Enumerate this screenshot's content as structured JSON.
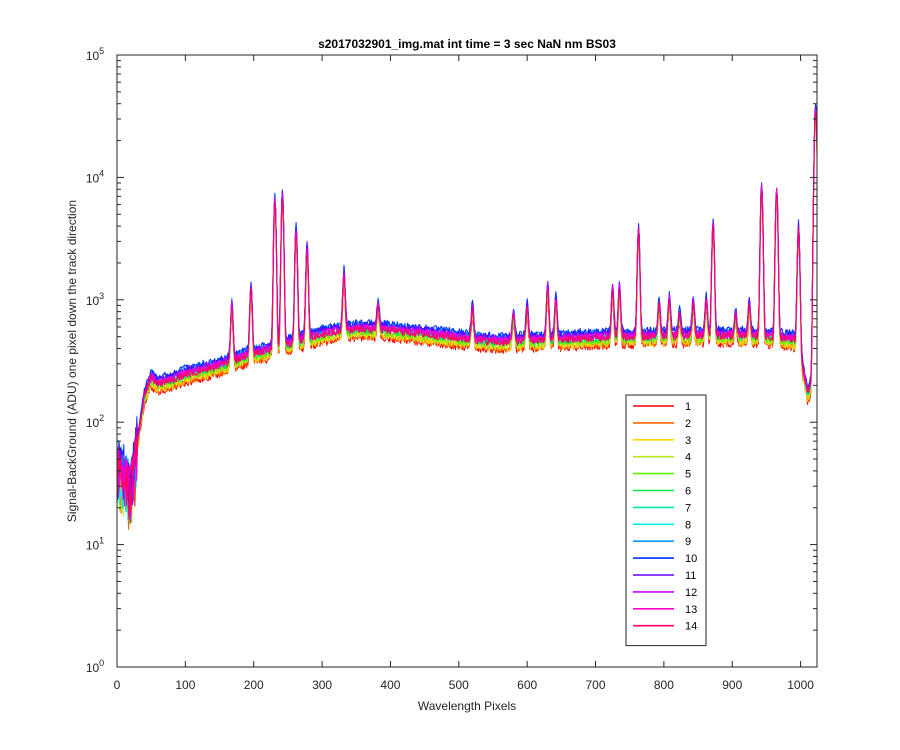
{
  "chart_data": {
    "type": "line",
    "title": "s2017032901_img.mat int time = 3 sec  NaN nm BS03",
    "xlabel": "Wavelength Pixels",
    "ylabel": "Signal-BackGround (ADU) one pixel down the track direction",
    "xlim": [
      0,
      1024
    ],
    "ylim": [
      1,
      100000
    ],
    "yscale": "log",
    "x_ticks": [
      "0",
      "100",
      "200",
      "300",
      "400",
      "500",
      "600",
      "700",
      "800",
      "900",
      "1000"
    ],
    "x_tick_values": [
      0,
      100,
      200,
      300,
      400,
      500,
      600,
      700,
      800,
      900,
      1000
    ],
    "y_tick_base": "10",
    "y_tick_exponents": [
      "0",
      "1",
      "2",
      "3",
      "4",
      "5"
    ],
    "y_tick_values": [
      1,
      10,
      100,
      1000,
      10000,
      100000
    ],
    "legend_position": "lower-right",
    "baseline_profile": {
      "x": [
        0,
        10,
        20,
        30,
        40,
        50,
        60,
        80,
        100,
        130,
        160,
        180,
        200,
        220,
        250,
        280,
        300,
        330,
        360,
        400,
        440,
        480,
        520,
        560,
        600,
        640,
        680,
        720,
        760,
        800,
        840,
        880,
        920,
        960,
        990,
        1000,
        1010,
        1024
      ],
      "y": [
        45,
        38,
        30,
        70,
        160,
        230,
        205,
        220,
        245,
        270,
        300,
        330,
        360,
        380,
        430,
        480,
        520,
        560,
        575,
        560,
        530,
        500,
        470,
        450,
        460,
        470,
        480,
        490,
        495,
        500,
        505,
        510,
        505,
        495,
        470,
        350,
        170,
        260
      ]
    },
    "peaks": [
      {
        "x": 168,
        "y": 900
      },
      {
        "x": 196,
        "y": 1200
      },
      {
        "x": 231,
        "y": 6200
      },
      {
        "x": 242,
        "y": 7000
      },
      {
        "x": 262,
        "y": 3600
      },
      {
        "x": 278,
        "y": 2600
      },
      {
        "x": 332,
        "y": 1600
      },
      {
        "x": 382,
        "y": 900
      },
      {
        "x": 520,
        "y": 850
      },
      {
        "x": 580,
        "y": 750
      },
      {
        "x": 600,
        "y": 850
      },
      {
        "x": 630,
        "y": 1250
      },
      {
        "x": 642,
        "y": 1000
      },
      {
        "x": 725,
        "y": 1200
      },
      {
        "x": 735,
        "y": 1250
      },
      {
        "x": 763,
        "y": 3600
      },
      {
        "x": 793,
        "y": 900
      },
      {
        "x": 808,
        "y": 1000
      },
      {
        "x": 823,
        "y": 750
      },
      {
        "x": 843,
        "y": 950
      },
      {
        "x": 862,
        "y": 1000
      },
      {
        "x": 872,
        "y": 4000
      },
      {
        "x": 905,
        "y": 750
      },
      {
        "x": 925,
        "y": 900
      },
      {
        "x": 943,
        "y": 8000
      },
      {
        "x": 965,
        "y": 7500
      },
      {
        "x": 997,
        "y": 3800
      },
      {
        "x": 1022,
        "y": 35000
      }
    ],
    "series": [
      {
        "name": "1",
        "color": "#ff0000",
        "scale": 0.86
      },
      {
        "name": "2",
        "color": "#ff6600",
        "scale": 0.88
      },
      {
        "name": "3",
        "color": "#ffd700",
        "scale": 0.9
      },
      {
        "name": "4",
        "color": "#b5e61d",
        "scale": 0.93
      },
      {
        "name": "5",
        "color": "#66ee00",
        "scale": 0.96
      },
      {
        "name": "6",
        "color": "#00ee44",
        "scale": 0.99
      },
      {
        "name": "7",
        "color": "#00eeaa",
        "scale": 1.03
      },
      {
        "name": "8",
        "color": "#00f0f0",
        "scale": 1.07
      },
      {
        "name": "9",
        "color": "#0099ff",
        "scale": 1.1
      },
      {
        "name": "10",
        "color": "#0033ff",
        "scale": 1.13
      },
      {
        "name": "11",
        "color": "#6600ff",
        "scale": 1.08
      },
      {
        "name": "12",
        "color": "#cc00ff",
        "scale": 1.05
      },
      {
        "name": "13",
        "color": "#ff00cc",
        "scale": 1.02
      },
      {
        "name": "14",
        "color": "#ff0066",
        "scale": 1.0
      }
    ]
  }
}
